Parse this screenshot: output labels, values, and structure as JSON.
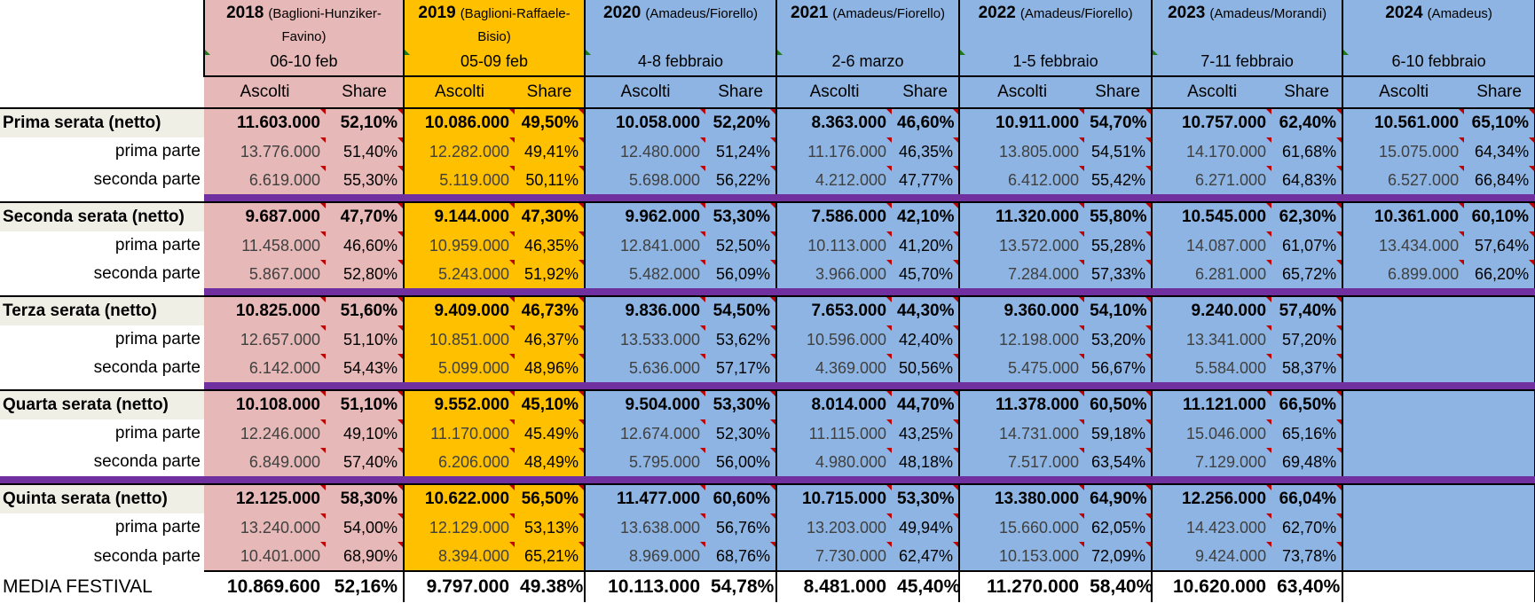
{
  "years": [
    {
      "year": "2018",
      "hosts": "(Baglioni-Hunziker-Favino)",
      "dates": "06-10 feb",
      "color": "#e6b8b7"
    },
    {
      "year": "2019",
      "hosts": "(Baglioni-Raffaele-Bisio)",
      "dates": "05-09 feb",
      "color": "#ffc000"
    },
    {
      "year": "2020",
      "hosts": "(Amadeus/Fiorello)",
      "dates": "4-8 febbraio",
      "color": "#8db4e2"
    },
    {
      "year": "2021",
      "hosts": "(Amadeus/Fiorello)",
      "dates": "2-6 marzo",
      "color": "#8db4e2"
    },
    {
      "year": "2022",
      "hosts": "(Amadeus/Fiorello)",
      "dates": "1-5 febbraio",
      "color": "#8db4e2"
    },
    {
      "year": "2023",
      "hosts": "(Amadeus/Morandi)",
      "dates": "7-11 febbraio",
      "color": "#8db4e2"
    },
    {
      "year": "2024",
      "hosts": "(Amadeus)",
      "dates": "6-10 febbraio",
      "color": "#8db4e2"
    }
  ],
  "col_ascolti": "Ascolti",
  "col_share": "Share",
  "chart_data": {
    "type": "table",
    "rows": [
      {
        "label": "Prima serata (netto)",
        "kind": "main",
        "cells": [
          [
            "11.603.000",
            "52,10%"
          ],
          [
            "10.086.000",
            "49,50%"
          ],
          [
            "10.058.000",
            "52,20%"
          ],
          [
            "8.363.000",
            "46,60%"
          ],
          [
            "10.911.000",
            "54,70%"
          ],
          [
            "10.757.000",
            "62,40%"
          ],
          [
            "10.561.000",
            "65,10%"
          ]
        ]
      },
      {
        "label": "prima parte",
        "kind": "sub",
        "cells": [
          [
            "13.776.000",
            "51,40%"
          ],
          [
            "12.282.000",
            "49,41%"
          ],
          [
            "12.480.000",
            "51,24%"
          ],
          [
            "11.176.000",
            "46,35%"
          ],
          [
            "13.805.000",
            "54,51%"
          ],
          [
            "14.170.000",
            "61,68%"
          ],
          [
            "15.075.000",
            "64,34%"
          ]
        ]
      },
      {
        "label": "seconda parte",
        "kind": "sub",
        "cells": [
          [
            "6.619.000",
            "55,30%"
          ],
          [
            "5.119.000",
            "50,11%"
          ],
          [
            "5.698.000",
            "56,22%"
          ],
          [
            "4.212.000",
            "47,77%"
          ],
          [
            "6.412.000",
            "55,42%"
          ],
          [
            "6.271.000",
            "64,83%"
          ],
          [
            "6.527.000",
            "66,84%"
          ]
        ]
      },
      {
        "label": "Seconda serata (netto)",
        "kind": "main",
        "cells": [
          [
            "9.687.000",
            "47,70%"
          ],
          [
            "9.144.000",
            "47,30%"
          ],
          [
            "9.962.000",
            "53,30%"
          ],
          [
            "7.586.000",
            "42,10%"
          ],
          [
            "11.320.000",
            "55,80%"
          ],
          [
            "10.545.000",
            "62,30%"
          ],
          [
            "10.361.000",
            "60,10%"
          ]
        ]
      },
      {
        "label": "prima parte",
        "kind": "sub",
        "cells": [
          [
            "11.458.000",
            "46,60%"
          ],
          [
            "10.959.000",
            "46,35%"
          ],
          [
            "12.841.000",
            "52,50%"
          ],
          [
            "10.113.000",
            "41,20%"
          ],
          [
            "13.572.000",
            "55,28%"
          ],
          [
            "14.087.000",
            "61,07%"
          ],
          [
            "13.434.000",
            "57,64%"
          ]
        ]
      },
      {
        "label": "seconda parte",
        "kind": "sub",
        "cells": [
          [
            "5.867.000",
            "52,80%"
          ],
          [
            "5.243.000",
            "51,92%"
          ],
          [
            "5.482.000",
            "56,09%"
          ],
          [
            "3.966.000",
            "45,70%"
          ],
          [
            "7.284.000",
            "57,33%"
          ],
          [
            "6.281.000",
            "65,72%"
          ],
          [
            "6.899.000",
            "66,20%"
          ]
        ]
      },
      {
        "label": "Terza serata (netto)",
        "kind": "main",
        "cells": [
          [
            "10.825.000",
            "51,60%"
          ],
          [
            "9.409.000",
            "46,73%"
          ],
          [
            "9.836.000",
            "54,50%"
          ],
          [
            "7.653.000",
            "44,30%"
          ],
          [
            "9.360.000",
            "54,10%"
          ],
          [
            "9.240.000",
            "57,40%"
          ],
          [
            "",
            ""
          ]
        ]
      },
      {
        "label": "prima parte",
        "kind": "sub",
        "cells": [
          [
            "12.657.000",
            "51,10%"
          ],
          [
            "10.851.000",
            "46,37%"
          ],
          [
            "13.533.000",
            "53,62%"
          ],
          [
            "10.596.000",
            "42,40%"
          ],
          [
            "12.198.000",
            "53,20%"
          ],
          [
            "13.341.000",
            "57,20%"
          ],
          [
            "",
            ""
          ]
        ]
      },
      {
        "label": "seconda parte",
        "kind": "sub",
        "cells": [
          [
            "6.142.000",
            "54,43%"
          ],
          [
            "5.099.000",
            "48,96%"
          ],
          [
            "5.636.000",
            "57,17%"
          ],
          [
            "4.369.000",
            "50,56%"
          ],
          [
            "5.475.000",
            "56,67%"
          ],
          [
            "5.584.000",
            "58,37%"
          ],
          [
            "",
            ""
          ]
        ]
      },
      {
        "label": "Quarta serata (netto)",
        "kind": "main",
        "cells": [
          [
            "10.108.000",
            "51,10%"
          ],
          [
            "9.552.000",
            "45,10%"
          ],
          [
            "9.504.000",
            "53,30%"
          ],
          [
            "8.014.000",
            "44,70%"
          ],
          [
            "11.378.000",
            "60,50%"
          ],
          [
            "11.121.000",
            "66,50%"
          ],
          [
            "",
            ""
          ]
        ]
      },
      {
        "label": "prima parte",
        "kind": "sub",
        "cells": [
          [
            "12.246.000",
            "49,10%"
          ],
          [
            "11.170.000",
            "45.49%"
          ],
          [
            "12.674.000",
            "52,30%"
          ],
          [
            "11.115.000",
            "43,25%"
          ],
          [
            "14.731.000",
            "59,18%"
          ],
          [
            "15.046.000",
            "65,16%"
          ],
          [
            "",
            ""
          ]
        ]
      },
      {
        "label": "seconda parte",
        "kind": "sub",
        "cells": [
          [
            "6.849.000",
            "57,40%"
          ],
          [
            "6.206.000",
            "48,49%"
          ],
          [
            "5.795.000",
            "56,00%"
          ],
          [
            "4.980.000",
            "48,18%"
          ],
          [
            "7.517.000",
            "63,54%"
          ],
          [
            "7.129.000",
            "69,48%"
          ],
          [
            "",
            ""
          ]
        ]
      },
      {
        "label": "Quinta serata (netto)",
        "kind": "main",
        "cells": [
          [
            "12.125.000",
            "58,30%"
          ],
          [
            "10.622.000",
            "56,50%"
          ],
          [
            "11.477.000",
            "60,60%"
          ],
          [
            "10.715.000",
            "53,30%"
          ],
          [
            "13.380.000",
            "64,90%"
          ],
          [
            "12.256.000",
            "66,04%"
          ],
          [
            "",
            ""
          ]
        ]
      },
      {
        "label": "prima parte",
        "kind": "sub",
        "cells": [
          [
            "13.240.000",
            "54,00%"
          ],
          [
            "12.129.000",
            "53,13%"
          ],
          [
            "13.638.000",
            "56,76%"
          ],
          [
            "13.203.000",
            "49,94%"
          ],
          [
            "15.660.000",
            "62,05%"
          ],
          [
            "14.423.000",
            "62,70%"
          ],
          [
            "",
            ""
          ]
        ]
      },
      {
        "label": "seconda parte",
        "kind": "sub",
        "cells": [
          [
            "10.401.000",
            "68,90%"
          ],
          [
            "8.394.000",
            "65,21%"
          ],
          [
            "8.969.000",
            "68,76%"
          ],
          [
            "7.730.000",
            "62,47%"
          ],
          [
            "10.153.000",
            "72,09%"
          ],
          [
            "9.424.000",
            "73,78%"
          ],
          [
            "",
            ""
          ]
        ]
      }
    ],
    "media": {
      "label": "MEDIA FESTIVAL",
      "cells": [
        [
          "10.869.600",
          "52,16%"
        ],
        [
          "9.797.000",
          "49.38%"
        ],
        [
          "10.113.000",
          "54,78%"
        ],
        [
          "8.481.000",
          "45,40%"
        ],
        [
          "11.270.000",
          "58,40%"
        ],
        [
          "10.620.000",
          "63,40%"
        ],
        [
          "",
          ""
        ]
      ]
    }
  }
}
